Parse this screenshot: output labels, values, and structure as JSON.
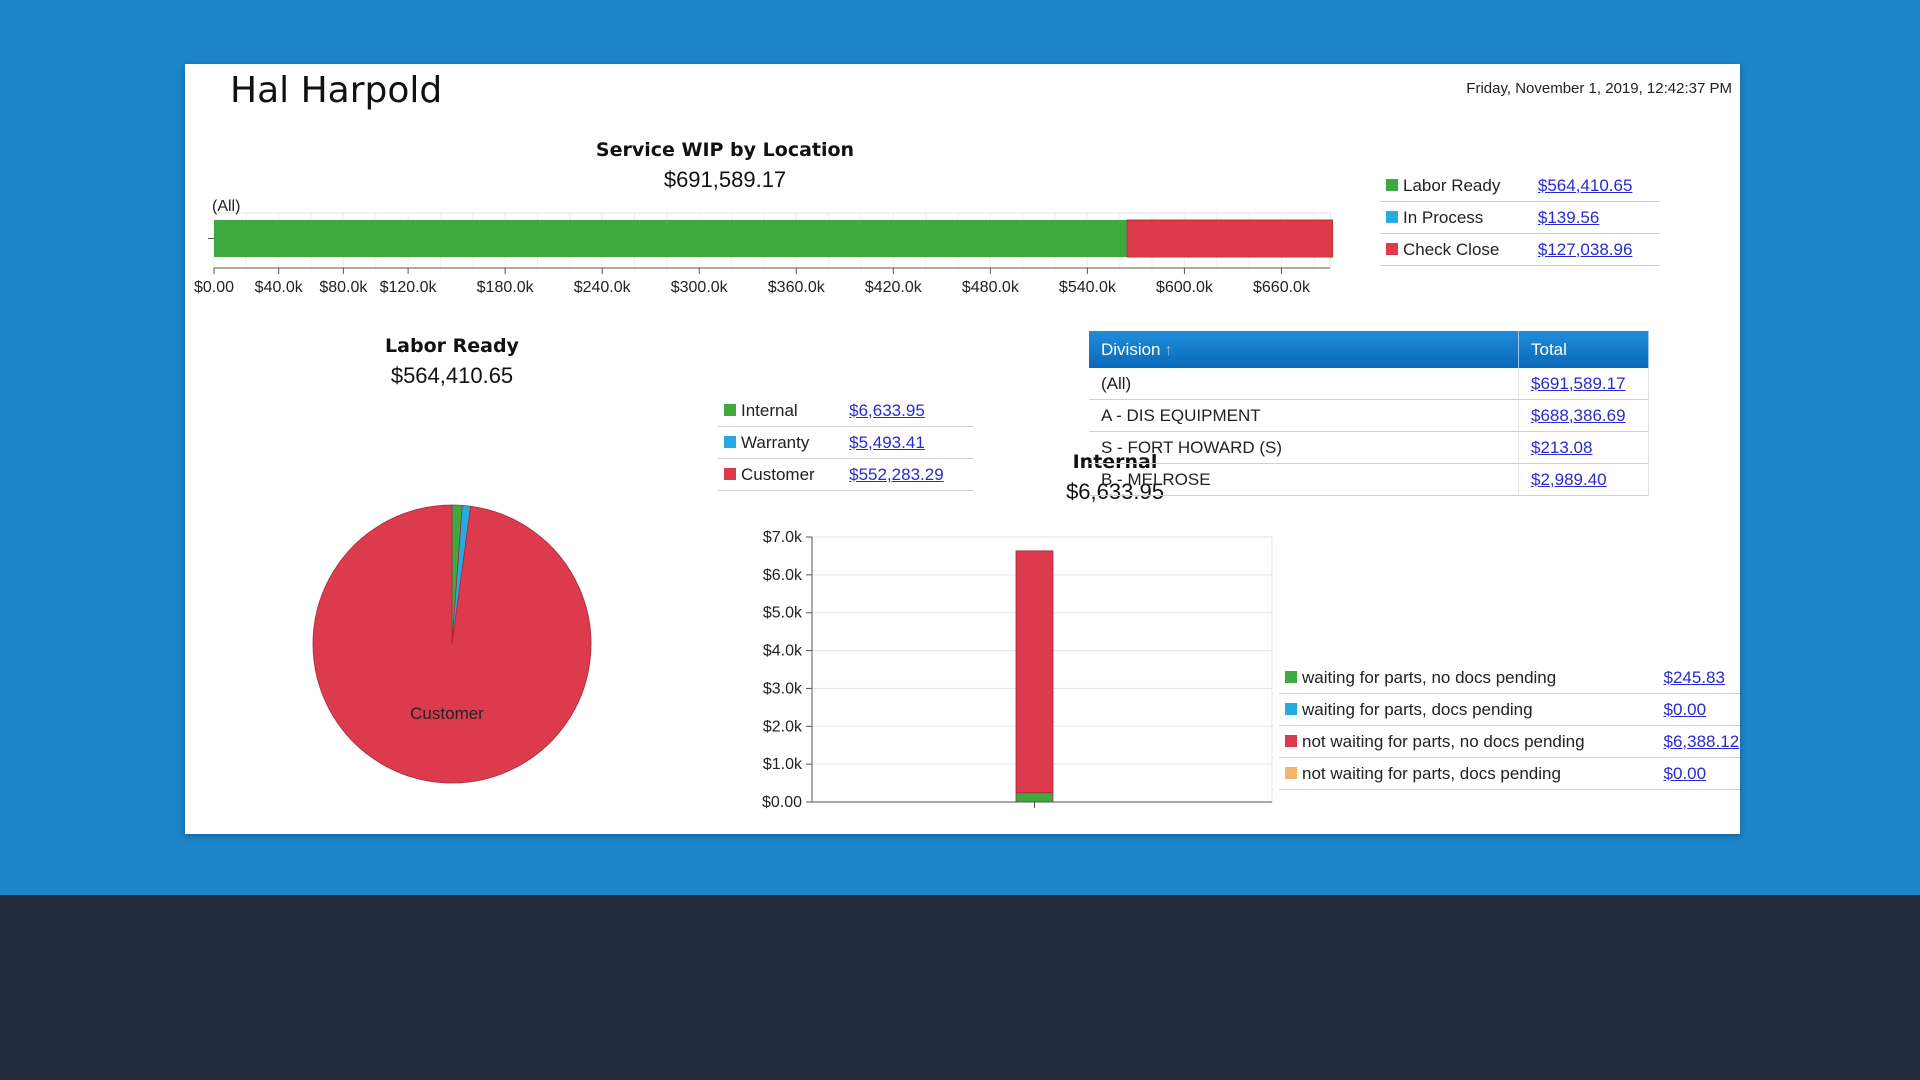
{
  "header": {
    "user_name": "Hal Harpold",
    "timestamp": "Friday, November 1, 2019, 12:42:37 PM"
  },
  "colors": {
    "labor_ready": "#3fa93f",
    "in_process": "#27a9e1",
    "check_close": "#dc3b4e",
    "orange": "#f5b370",
    "header_blue": "#0a72c4",
    "page_blue": "#1c84c9",
    "dark_band": "#212b3f"
  },
  "wip": {
    "title": "Service WIP by Location",
    "total": "$691,589.17",
    "legend": [
      {
        "label": "Labor Ready",
        "value": "$564,410.65",
        "color": "#3fa93f"
      },
      {
        "label": "In Process",
        "value": "$139.56",
        "color": "#27a9e1"
      },
      {
        "label": "Check Close",
        "value": "$127,038.96",
        "color": "#dc3b4e"
      }
    ]
  },
  "labor": {
    "title": "Labor Ready",
    "total": "$564,410.65",
    "legend": [
      {
        "label": "Internal",
        "value": "$6,633.95",
        "color": "#3fa93f"
      },
      {
        "label": "Warranty",
        "value": "$5,493.41",
        "color": "#27a9e1"
      },
      {
        "label": "Customer",
        "value": "$552,283.29",
        "color": "#dc3b4e"
      }
    ]
  },
  "internal": {
    "title": "Internal",
    "total": "$6,633.95",
    "legend": [
      {
        "label": "waiting for parts, no docs pending",
        "value": "$245.83",
        "color": "#3fa93f"
      },
      {
        "label": "waiting for parts, docs pending",
        "value": "$0.00",
        "color": "#27a9e1"
      },
      {
        "label": "not waiting for parts, no docs pending",
        "value": "$6,388.12",
        "color": "#dc3b4e"
      },
      {
        "label": "not waiting for parts, docs pending",
        "value": "$0.00",
        "color": "#f5b370"
      }
    ]
  },
  "division_table": {
    "headers": {
      "division": "Division",
      "total": "Total"
    },
    "sort_icon": "sort-ascending-icon",
    "rows": [
      {
        "division": "(All)",
        "total": "$691,589.17"
      },
      {
        "division": "A - DIS EQUIPMENT",
        "total": "$688,386.69"
      },
      {
        "division": "S - FORT HOWARD (S)",
        "total": "$213.08"
      },
      {
        "division": "B - MELROSE",
        "total": "$2,989.40"
      }
    ]
  },
  "chart_data": [
    {
      "type": "bar",
      "orientation": "horizontal",
      "stacked": true,
      "title": "Service WIP by Location",
      "subtitle": "$691,589.17",
      "categories": [
        "(All)"
      ],
      "series": [
        {
          "name": "Labor Ready",
          "values": [
            564410.65
          ],
          "color": "#3fa93f"
        },
        {
          "name": "In Process",
          "values": [
            139.56
          ],
          "color": "#27a9e1"
        },
        {
          "name": "Check Close",
          "values": [
            127038.96
          ],
          "color": "#dc3b4e"
        }
      ],
      "xlim": [
        0,
        690000
      ],
      "xticks": [
        0,
        40000,
        80000,
        120000,
        180000,
        240000,
        300000,
        360000,
        420000,
        480000,
        540000,
        600000,
        660000
      ],
      "xtick_labels": [
        "$0.00",
        "$40.0k",
        "$80.0k",
        "$120.0k",
        "$180.0k",
        "$240.0k",
        "$300.0k",
        "$360.0k",
        "$420.0k",
        "$480.0k",
        "$540.0k",
        "$600.0k",
        "$660.0k"
      ],
      "grid": true,
      "legend_position": "right"
    },
    {
      "type": "pie",
      "title": "Labor Ready",
      "subtitle": "$564,410.65",
      "slices": [
        {
          "label": "Internal",
          "value": 6633.95,
          "color": "#3fa93f"
        },
        {
          "label": "Warranty",
          "value": 5493.41,
          "color": "#27a9e1"
        },
        {
          "label": "Customer",
          "value": 552283.29,
          "color": "#dc3b4e"
        }
      ],
      "slice_label": "Customer",
      "legend_position": "top-right"
    },
    {
      "type": "bar",
      "stacked": true,
      "title": "Internal",
      "subtitle": "$6,633.95",
      "categories": [
        ""
      ],
      "series": [
        {
          "name": "waiting for parts, no docs pending",
          "values": [
            245.83
          ],
          "color": "#3fa93f"
        },
        {
          "name": "waiting for parts, docs pending",
          "values": [
            0
          ],
          "color": "#27a9e1"
        },
        {
          "name": "not waiting for parts, no docs pending",
          "values": [
            6388.12
          ],
          "color": "#dc3b4e"
        },
        {
          "name": "not waiting for parts, docs pending",
          "values": [
            0
          ],
          "color": "#f5b370"
        }
      ],
      "ylim": [
        0,
        7000
      ],
      "yticks": [
        0,
        1000,
        2000,
        3000,
        4000,
        5000,
        6000,
        7000
      ],
      "ytick_labels": [
        "$0.00",
        "$1.0k",
        "$2.0k",
        "$3.0k",
        "$4.0k",
        "$5.0k",
        "$6.0k",
        "$7.0k"
      ],
      "grid": true,
      "legend_position": "right"
    }
  ]
}
